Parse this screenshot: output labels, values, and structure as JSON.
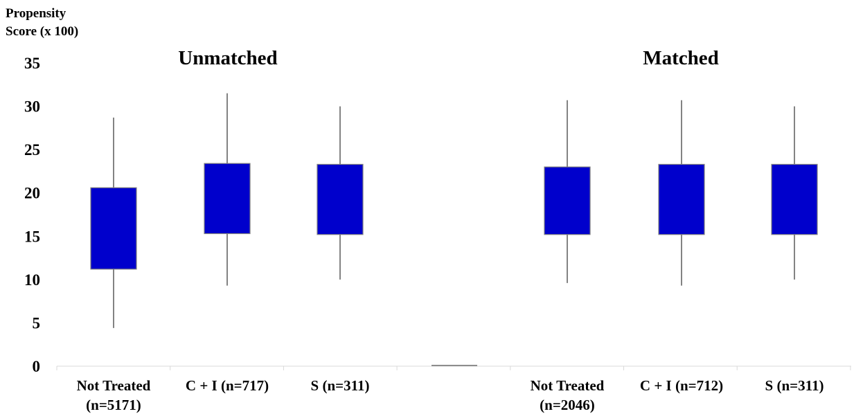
{
  "chart_data": {
    "type": "boxplot",
    "ylabel_line1": "Propensity",
    "ylabel_line2": "Score (x 100)",
    "ylim": [
      0,
      35
    ],
    "yticks": [
      "0",
      "5",
      "10",
      "15",
      "20",
      "25",
      "30",
      "35"
    ],
    "panels": [
      {
        "title": "Unmatched",
        "groups": [
          {
            "label_line1": "Not Treated",
            "label_line2": "(n=5171)",
            "whisker_low": 4.4,
            "q1": 11.2,
            "q3": 20.6,
            "whisker_high": 28.7
          },
          {
            "label_line1": "C + I (n=717)",
            "label_line2": "",
            "whisker_low": 9.3,
            "q1": 15.3,
            "q3": 23.4,
            "whisker_high": 31.5
          },
          {
            "label_line1": "S (n=311)",
            "label_line2": "",
            "whisker_low": 10.0,
            "q1": 15.2,
            "q3": 23.3,
            "whisker_high": 30.0
          }
        ]
      },
      {
        "title": "Matched",
        "groups": [
          {
            "label_line1": "Not Treated",
            "label_line2": "(n=2046)",
            "whisker_low": 9.6,
            "q1": 15.2,
            "q3": 23.0,
            "whisker_high": 30.7
          },
          {
            "label_line1": "C + I (n=712)",
            "label_line2": "",
            "whisker_low": 9.3,
            "q1": 15.2,
            "q3": 23.3,
            "whisker_high": 30.7
          },
          {
            "label_line1": "S (n=311)",
            "label_line2": "",
            "whisker_low": 10.0,
            "q1": 15.2,
            "q3": 23.3,
            "whisker_high": 30.0
          }
        ]
      }
    ],
    "box_color": "#0000CC",
    "grid": false
  }
}
